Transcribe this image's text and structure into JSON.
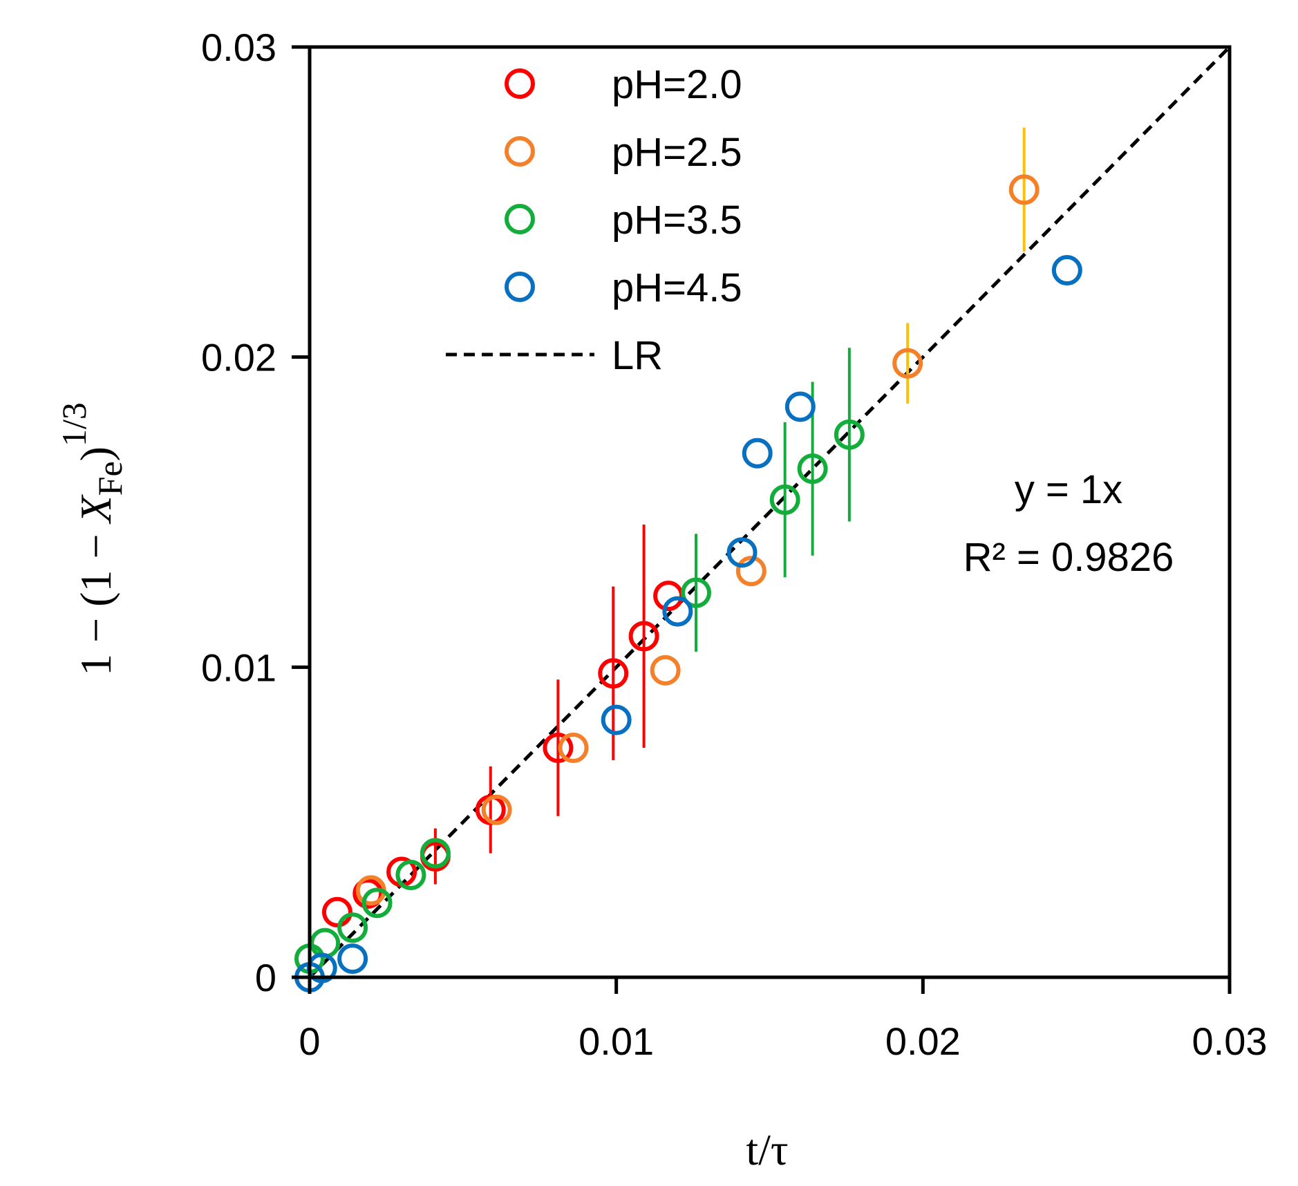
{
  "chart_data": {
    "type": "scatter",
    "title": "",
    "xlabel": "t/τ",
    "ylabel": {
      "prefix": "1 − (1 − ",
      "var": "X",
      "sub": "Fe",
      "suffix": ")",
      "sup": "1/3"
    },
    "xlim": [
      0,
      0.03
    ],
    "ylim": [
      0,
      0.03
    ],
    "xticks": [
      0,
      0.01,
      0.02,
      0.03
    ],
    "yticks": [
      0,
      0.01,
      0.02,
      0.03
    ],
    "xtick_labels": [
      "0",
      "0.01",
      "0.02",
      "0.03"
    ],
    "ytick_labels": [
      "0",
      "0.01",
      "0.02",
      "0.03"
    ],
    "grid": false,
    "legend_position": "top-left",
    "series": [
      {
        "name": "pH=2.0",
        "color": "#ff0000",
        "errcolor": "#ff0000",
        "points": [
          {
            "x": 0.0009,
            "y": 0.0021,
            "err": 0
          },
          {
            "x": 0.0019,
            "y": 0.0027,
            "err": 0
          },
          {
            "x": 0.003,
            "y": 0.0034,
            "err": 0
          },
          {
            "x": 0.0041,
            "y": 0.0039,
            "err": 0.0009
          },
          {
            "x": 0.0059,
            "y": 0.0054,
            "err": 0.0014
          },
          {
            "x": 0.0081,
            "y": 0.0074,
            "err": 0.0022
          },
          {
            "x": 0.0099,
            "y": 0.0098,
            "err": 0.0028
          },
          {
            "x": 0.0109,
            "y": 0.011,
            "err": 0.0036
          },
          {
            "x": 0.0117,
            "y": 0.0123,
            "err": 0
          }
        ]
      },
      {
        "name": "pH=2.5",
        "color": "#f4802a",
        "errcolor": "#ffc000",
        "points": [
          {
            "x": 0.002,
            "y": 0.0028,
            "err": 0
          },
          {
            "x": 0.0041,
            "y": 0.004,
            "err": 0
          },
          {
            "x": 0.0061,
            "y": 0.0054,
            "err": 0
          },
          {
            "x": 0.0086,
            "y": 0.0074,
            "err": 0
          },
          {
            "x": 0.0116,
            "y": 0.0099,
            "err": 0
          },
          {
            "x": 0.0144,
            "y": 0.0131,
            "err": 0
          },
          {
            "x": 0.0195,
            "y": 0.0198,
            "err": 0.0013
          },
          {
            "x": 0.0233,
            "y": 0.0254,
            "err": 0.002
          }
        ]
      },
      {
        "name": "pH=3.5",
        "color": "#12ad3a",
        "errcolor": "#12ad3a",
        "points": [
          {
            "x": 0.0,
            "y": 0.0006,
            "err": 0
          },
          {
            "x": 0.0005,
            "y": 0.0011,
            "err": 0
          },
          {
            "x": 0.0014,
            "y": 0.0016,
            "err": 0
          },
          {
            "x": 0.0022,
            "y": 0.0024,
            "err": 0
          },
          {
            "x": 0.0033,
            "y": 0.0033,
            "err": 0
          },
          {
            "x": 0.0041,
            "y": 0.004,
            "err": 0
          },
          {
            "x": 0.0126,
            "y": 0.0124,
            "err": 0.0019
          },
          {
            "x": 0.0155,
            "y": 0.0154,
            "err": 0.0025
          },
          {
            "x": 0.0164,
            "y": 0.0164,
            "err": 0.0028
          },
          {
            "x": 0.0176,
            "y": 0.0175,
            "err": 0.0028
          }
        ]
      },
      {
        "name": "pH=4.5",
        "color": "#0870c0",
        "errcolor": "#0870c0",
        "points": [
          {
            "x": 0.0,
            "y": 0.0,
            "err": 0
          },
          {
            "x": 0.0004,
            "y": 0.0003,
            "err": 0
          },
          {
            "x": 0.0014,
            "y": 0.0006,
            "err": 0
          },
          {
            "x": 0.01,
            "y": 0.0083,
            "err": 0
          },
          {
            "x": 0.012,
            "y": 0.0118,
            "err": 0
          },
          {
            "x": 0.0141,
            "y": 0.0137,
            "err": 0
          },
          {
            "x": 0.0146,
            "y": 0.0169,
            "err": 0
          },
          {
            "x": 0.016,
            "y": 0.0184,
            "err": 0
          },
          {
            "x": 0.0247,
            "y": 0.0228,
            "err": 0
          }
        ]
      }
    ],
    "fit_line": {
      "name": "LR",
      "color": "#000000",
      "x": [
        0,
        0.03
      ],
      "y": [
        0,
        0.03
      ]
    },
    "annotations": [
      "y = 1x",
      "R² = 0.9826"
    ]
  }
}
